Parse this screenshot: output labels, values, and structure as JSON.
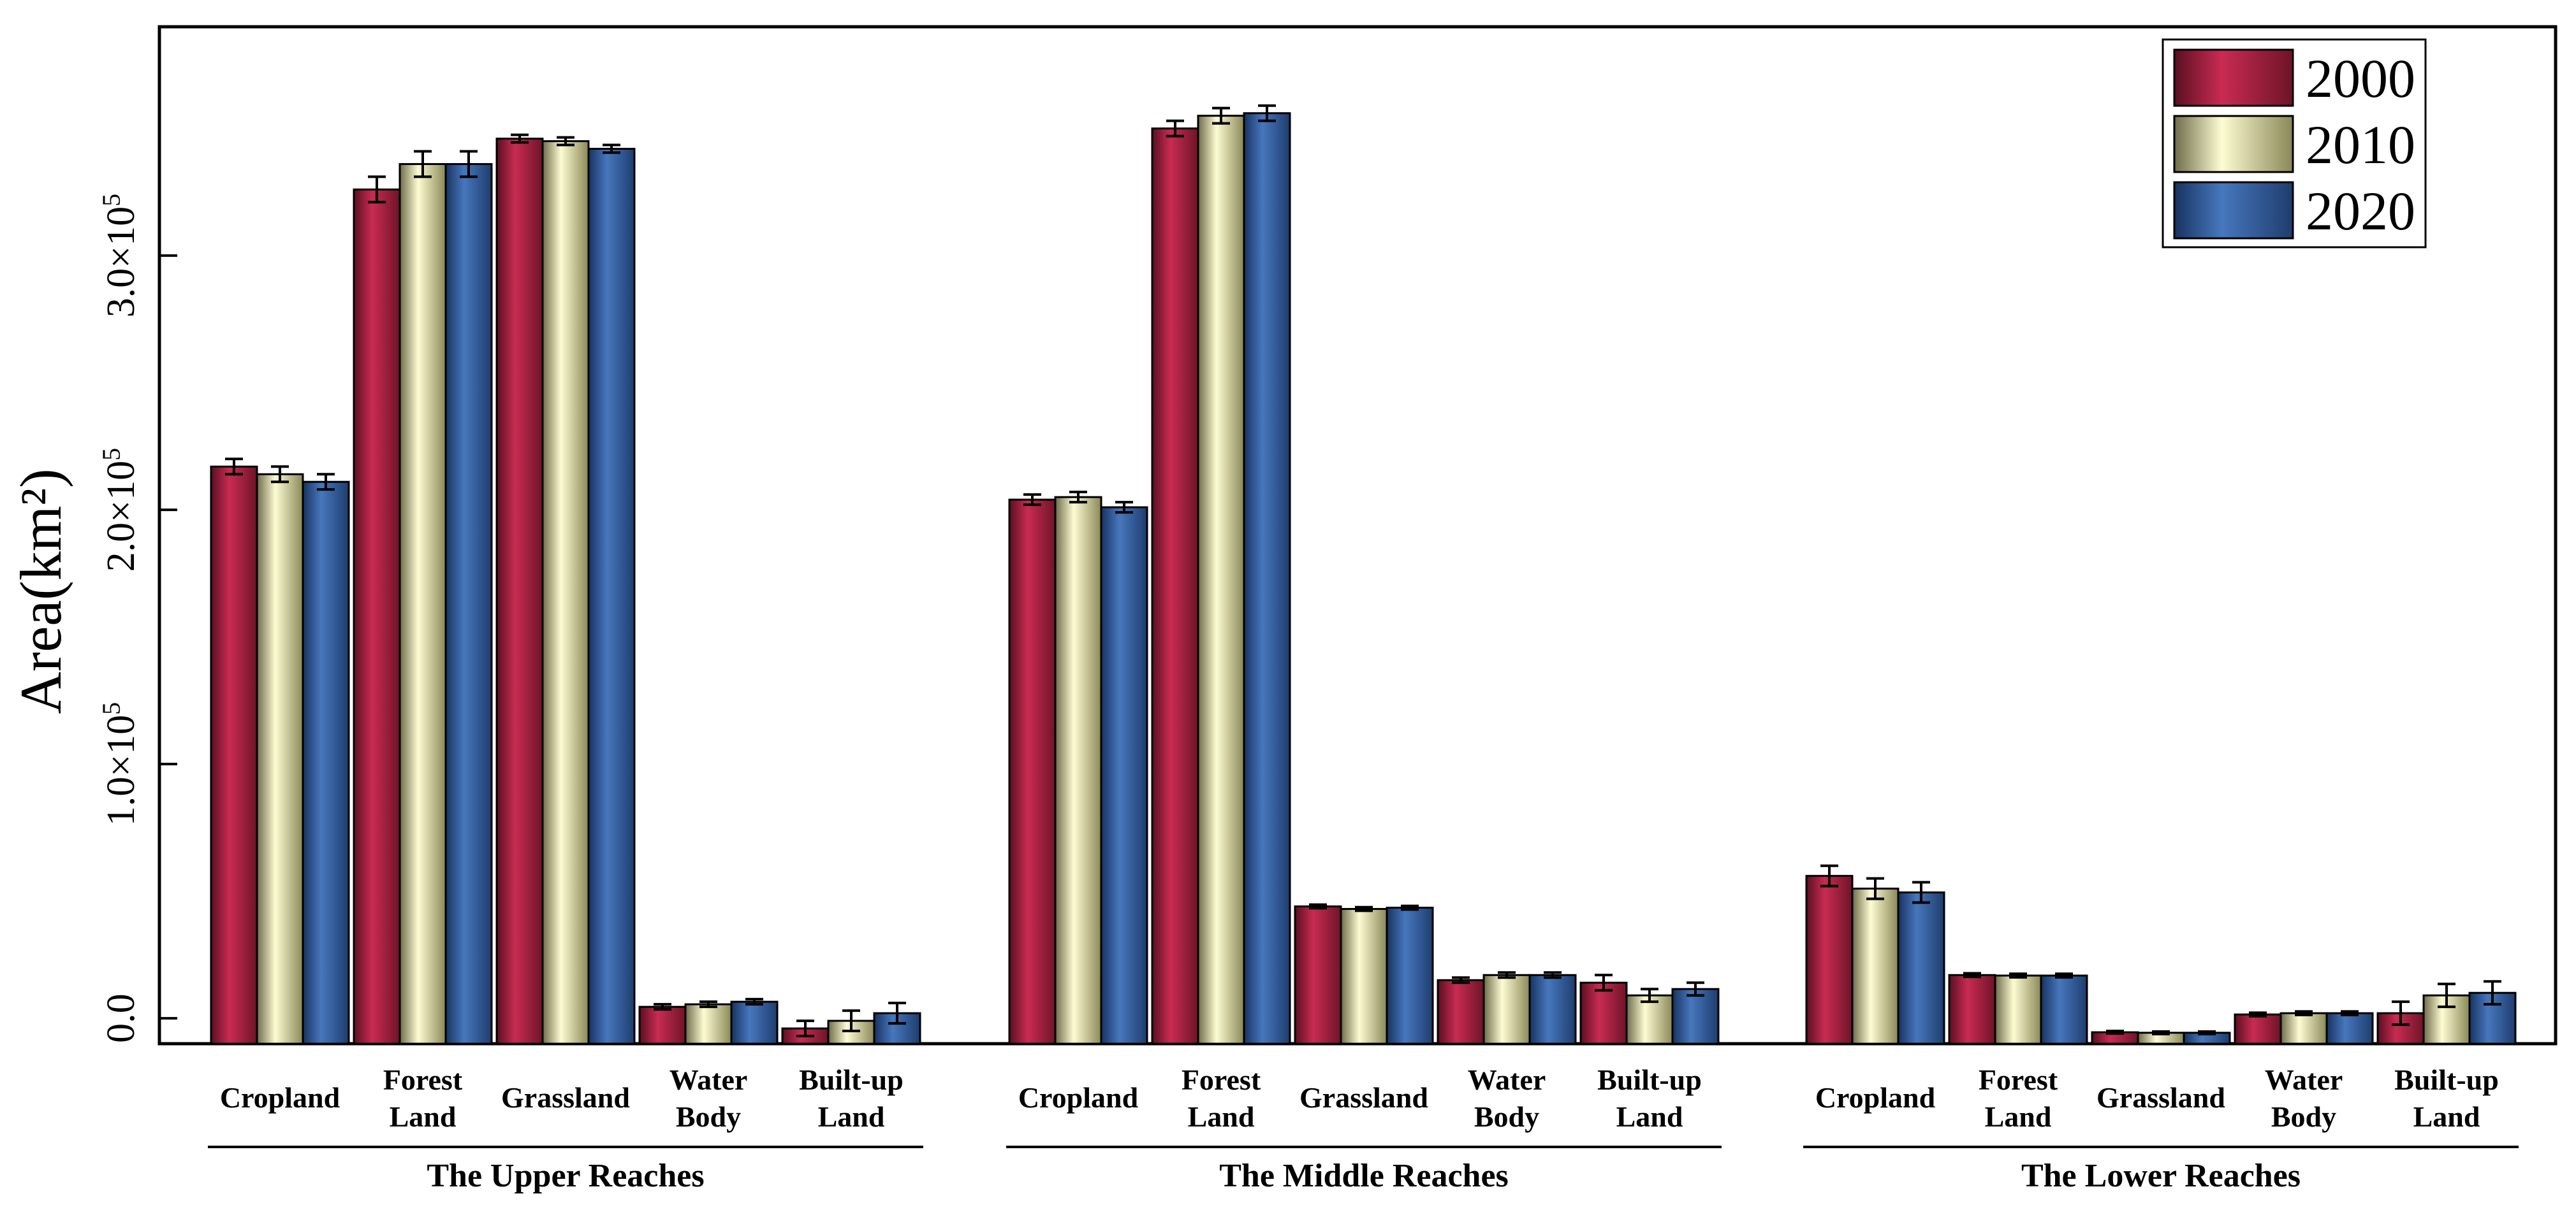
{
  "chart_data": {
    "type": "bar",
    "title": "",
    "ylabel": "Area(km²)",
    "y_ticks": [
      {
        "value": 0,
        "mantissa": "0.0",
        "exponent": ""
      },
      {
        "value": 100000,
        "mantissa": "1.0×10",
        "exponent": "5"
      },
      {
        "value": 200000,
        "mantissa": "2.0×10",
        "exponent": "5"
      },
      {
        "value": 300000,
        "mantissa": "3.0×10",
        "exponent": "5"
      }
    ],
    "ylim": [
      -10000,
      390000
    ],
    "grid": false,
    "legend_position": "top-right",
    "colors": {
      "2000": "#c0264a",
      "2010": "#f4f2b8",
      "2020": "#3d6cb0"
    },
    "series": [
      {
        "name": "2000"
      },
      {
        "name": "2010"
      },
      {
        "name": "2020"
      }
    ],
    "groups": [
      {
        "label": "The Upper Reaches",
        "categories": [
          {
            "line1": "Cropland",
            "line2": "",
            "values": [
              217000,
              214000,
              211000
            ],
            "errors": [
              3000,
              3000,
              3000
            ]
          },
          {
            "line1": "Forest",
            "line2": "Land",
            "values": [
              326000,
              336000,
              336000
            ],
            "errors": [
              5000,
              5000,
              5000
            ]
          },
          {
            "line1": "Grassland",
            "line2": "",
            "values": [
              346000,
              345000,
              342000
            ],
            "errors": [
              1500,
              1500,
              1500
            ]
          },
          {
            "line1": "Water",
            "line2": "Body",
            "values": [
              4500,
              5500,
              6500
            ],
            "errors": [
              1000,
              1000,
              1000
            ]
          },
          {
            "line1": "Built-up",
            "line2": "Land",
            "values": [
              -4000,
              -1000,
              2000
            ],
            "errors": [
              3000,
              4000,
              4000
            ]
          }
        ]
      },
      {
        "label": "The Middle Reaches",
        "categories": [
          {
            "line1": "Cropland",
            "line2": "",
            "values": [
              204000,
              205000,
              201000
            ],
            "errors": [
              2000,
              2000,
              2000
            ]
          },
          {
            "line1": "Forest",
            "line2": "Land",
            "values": [
              350000,
              355000,
              356000
            ],
            "errors": [
              3000,
              3000,
              3000
            ]
          },
          {
            "line1": "Grassland",
            "line2": "",
            "values": [
              44000,
              43000,
              43500
            ],
            "errors": [
              700,
              700,
              700
            ]
          },
          {
            "line1": "Water",
            "line2": "Body",
            "values": [
              15000,
              17000,
              17000
            ],
            "errors": [
              1000,
              1000,
              1000
            ]
          },
          {
            "line1": "Built-up",
            "line2": "Land",
            "values": [
              14000,
              9000,
              11500
            ],
            "errors": [
              3000,
              2500,
              2500
            ]
          }
        ]
      },
      {
        "label": "The Lower Reaches",
        "categories": [
          {
            "line1": "Cropland",
            "line2": "",
            "values": [
              56000,
              51000,
              49500
            ],
            "errors": [
              4000,
              4000,
              4000
            ]
          },
          {
            "line1": "Forest",
            "line2": "Land",
            "values": [
              17000,
              16800,
              16800
            ],
            "errors": [
              700,
              700,
              700
            ]
          },
          {
            "line1": "Grassland",
            "line2": "",
            "values": [
              -5500,
              -5700,
              -5700
            ],
            "errors": [
              500,
              500,
              500
            ]
          },
          {
            "line1": "Water",
            "line2": "Body",
            "values": [
              1500,
              2000,
              2000
            ],
            "errors": [
              700,
              700,
              700
            ]
          },
          {
            "line1": "Built-up",
            "line2": "Land",
            "values": [
              2000,
              9000,
              10000
            ],
            "errors": [
              4500,
              4500,
              4500
            ]
          }
        ]
      }
    ]
  }
}
